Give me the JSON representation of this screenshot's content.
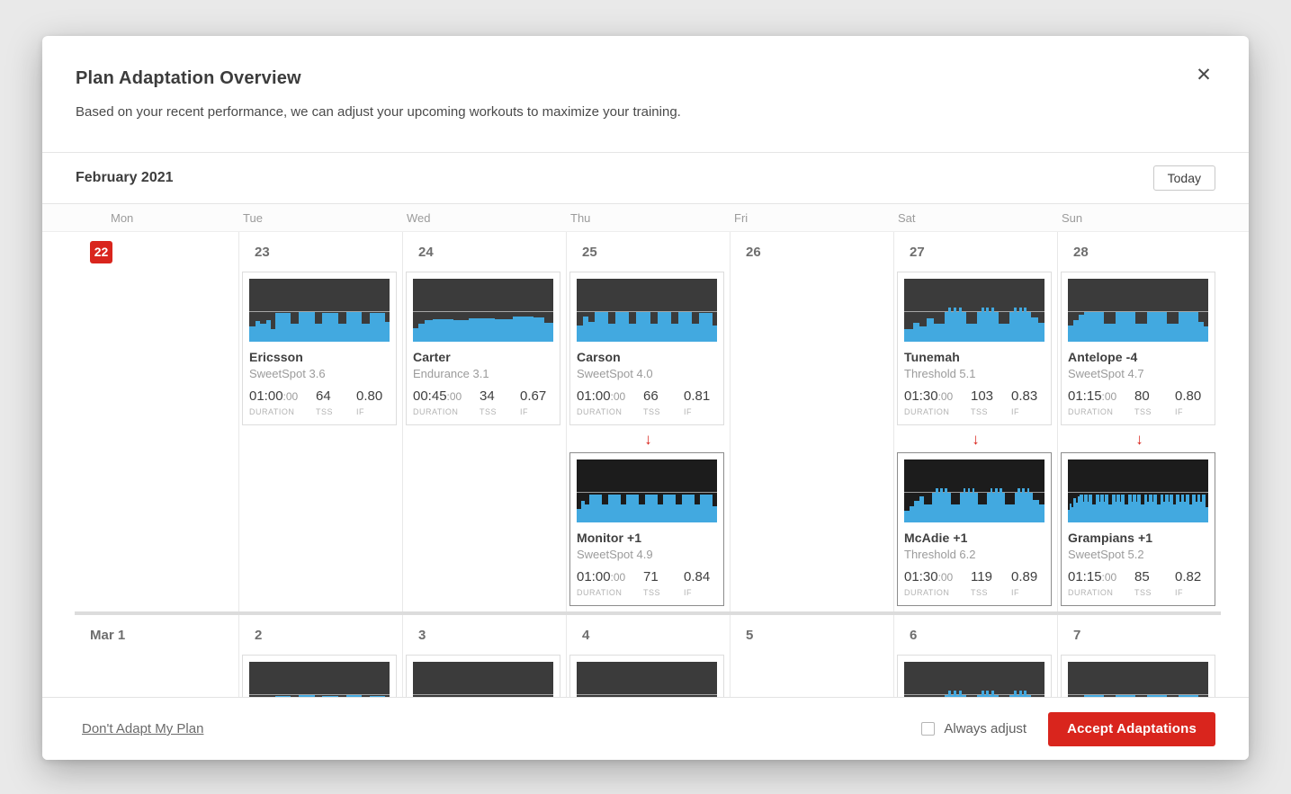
{
  "modal": {
    "title": "Plan Adaptation Overview",
    "subtitle": "Based on your recent performance, we can adjust your upcoming workouts to maximize your training.",
    "close_icon": "✕"
  },
  "calendar": {
    "month_label": "February 2021",
    "today_button": "Today",
    "day_headers": [
      "Mon",
      "Tue",
      "Wed",
      "Thu",
      "Fri",
      "Sat",
      "Sun"
    ],
    "stats_labels": {
      "duration": "DURATION",
      "tss": "TSS",
      "if": "IF"
    },
    "adaptation_arrow": "↓",
    "weeks": [
      {
        "days": [
          {
            "date": "22",
            "today": true,
            "workouts": []
          },
          {
            "date": "23",
            "workouts": [
              {
                "name": "Ericsson",
                "subtitle": "SweetSpot 3.6",
                "duration": "01:00",
                "duration_sec": ":00",
                "tss": "64",
                "if": "0.80",
                "profile": "ss5",
                "adapted": false
              }
            ]
          },
          {
            "date": "24",
            "workouts": [
              {
                "name": "Carter",
                "subtitle": "Endurance 3.1",
                "duration": "00:45",
                "duration_sec": ":00",
                "tss": "34",
                "if": "0.67",
                "profile": "endurance",
                "adapted": false
              }
            ]
          },
          {
            "date": "25",
            "workouts": [
              {
                "name": "Carson",
                "subtitle": "SweetSpot 4.0",
                "duration": "01:00",
                "duration_sec": ":00",
                "tss": "66",
                "if": "0.81",
                "profile": "ss6",
                "adapted": false
              },
              {
                "name": "Monitor +1",
                "subtitle": "SweetSpot 4.9",
                "duration": "01:00",
                "duration_sec": ":00",
                "tss": "71",
                "if": "0.84",
                "profile": "ss7",
                "adapted": true
              }
            ]
          },
          {
            "date": "26",
            "workouts": []
          },
          {
            "date": "27",
            "workouts": [
              {
                "name": "Tunemah",
                "subtitle": "Threshold 5.1",
                "duration": "01:30",
                "duration_sec": ":00",
                "tss": "103",
                "if": "0.83",
                "profile": "thr3",
                "adapted": false
              },
              {
                "name": "McAdie +1",
                "subtitle": "Threshold 6.2",
                "duration": "01:30",
                "duration_sec": ":00",
                "tss": "119",
                "if": "0.89",
                "profile": "thr4",
                "adapted": true
              }
            ]
          },
          {
            "date": "28",
            "workouts": [
              {
                "name": "Antelope -4",
                "subtitle": "SweetSpot 4.7",
                "duration": "01:15",
                "duration_sec": ":00",
                "tss": "80",
                "if": "0.80",
                "profile": "ss4",
                "adapted": false
              },
              {
                "name": "Grampians +1",
                "subtitle": "SweetSpot 5.2",
                "duration": "01:15",
                "duration_sec": ":00",
                "tss": "85",
                "if": "0.82",
                "profile": "ss_dense",
                "adapted": true
              }
            ]
          }
        ]
      },
      {
        "days": [
          {
            "date": "Mar 1",
            "workouts": []
          },
          {
            "date": "2",
            "workouts": [
              {
                "profile": "ss5",
                "adapted": false
              }
            ]
          },
          {
            "date": "3",
            "workouts": [
              {
                "profile": "endurance",
                "adapted": false
              }
            ]
          },
          {
            "date": "4",
            "workouts": [
              {
                "profile": "ss7",
                "adapted": false
              }
            ]
          },
          {
            "date": "5",
            "workouts": []
          },
          {
            "date": "6",
            "workouts": [
              {
                "profile": "thr3",
                "adapted": false
              }
            ]
          },
          {
            "date": "7",
            "workouts": [
              {
                "profile": "ss4",
                "adapted": false
              }
            ]
          }
        ]
      }
    ]
  },
  "footer": {
    "decline_link": "Don't Adapt My Plan",
    "always_adjust_label": "Always adjust",
    "checkbox_checked": false,
    "accept_button": "Accept Adaptations"
  },
  "colors": {
    "accent_red": "#d9251d",
    "chart_blue": "#42a9e0",
    "chart_bg": "#3b3b3b",
    "chart_bg_adapted": "#1c1c1c"
  },
  "profiles": {
    "ss5": [
      [
        2.5,
        0.24
      ],
      [
        2,
        0.33
      ],
      [
        2.5,
        0.29
      ],
      [
        2,
        0.34
      ],
      [
        1.5,
        0.2
      ],
      [
        6.5,
        0.46
      ],
      [
        3.2,
        0.29
      ],
      [
        6.5,
        0.47
      ],
      [
        3.2,
        0.29
      ],
      [
        6.5,
        0.46
      ],
      [
        3.2,
        0.29
      ],
      [
        6.5,
        0.47
      ],
      [
        3,
        0.29
      ],
      [
        6.5,
        0.46
      ],
      [
        1.8,
        0.31
      ]
    ],
    "endurance": [
      [
        2,
        0.21
      ],
      [
        2.5,
        0.29
      ],
      [
        3,
        0.34
      ],
      [
        8,
        0.36
      ],
      [
        6,
        0.35
      ],
      [
        10,
        0.37
      ],
      [
        7,
        0.36
      ],
      [
        8,
        0.4
      ],
      [
        4,
        0.38
      ],
      [
        3.5,
        0.3
      ]
    ],
    "ss6": [
      [
        2,
        0.26
      ],
      [
        2,
        0.4
      ],
      [
        2,
        0.31
      ],
      [
        4.6,
        0.47
      ],
      [
        2.4,
        0.29
      ],
      [
        4.6,
        0.47
      ],
      [
        2.4,
        0.29
      ],
      [
        4.6,
        0.47
      ],
      [
        2.4,
        0.29
      ],
      [
        4.6,
        0.47
      ],
      [
        2.4,
        0.29
      ],
      [
        4.6,
        0.47
      ],
      [
        2.4,
        0.29
      ],
      [
        4.6,
        0.46
      ],
      [
        1.4,
        0.26
      ]
    ],
    "ss7": [
      [
        1.4,
        0.22
      ],
      [
        1.4,
        0.35
      ],
      [
        1.4,
        0.28
      ],
      [
        4.2,
        0.45
      ],
      [
        1.9,
        0.28
      ],
      [
        4.2,
        0.45
      ],
      [
        1.9,
        0.28
      ],
      [
        4.2,
        0.45
      ],
      [
        1.9,
        0.28
      ],
      [
        4.2,
        0.45
      ],
      [
        1.9,
        0.28
      ],
      [
        4.2,
        0.45
      ],
      [
        1.9,
        0.28
      ],
      [
        4.2,
        0.45
      ],
      [
        1.9,
        0.28
      ],
      [
        4.2,
        0.44
      ],
      [
        1.4,
        0.26
      ]
    ],
    "ss4": [
      [
        1.5,
        0.26
      ],
      [
        1.5,
        0.35
      ],
      [
        1.5,
        0.43
      ],
      [
        5.5,
        0.47
      ],
      [
        3.2,
        0.28
      ],
      [
        5.5,
        0.47
      ],
      [
        3.2,
        0.28
      ],
      [
        5.5,
        0.47
      ],
      [
        3.2,
        0.28
      ],
      [
        5.5,
        0.47
      ],
      [
        1.5,
        0.31
      ],
      [
        1.3,
        0.24
      ]
    ],
    "thr3": [
      [
        2.5,
        0.2
      ],
      [
        1.5,
        0.3
      ],
      [
        2,
        0.25
      ],
      [
        2,
        0.37
      ],
      [
        2.8,
        0.29
      ],
      [
        1.1,
        0.47
      ],
      [
        0.7,
        0.54
      ],
      [
        0.7,
        0.47
      ],
      [
        0.7,
        0.54
      ],
      [
        0.7,
        0.47
      ],
      [
        0.7,
        0.54
      ],
      [
        1.1,
        0.47
      ],
      [
        3,
        0.29
      ],
      [
        1.1,
        0.47
      ],
      [
        0.7,
        0.54
      ],
      [
        0.7,
        0.47
      ],
      [
        0.7,
        0.54
      ],
      [
        0.7,
        0.47
      ],
      [
        0.7,
        0.54
      ],
      [
        1.1,
        0.47
      ],
      [
        3,
        0.29
      ],
      [
        1.1,
        0.47
      ],
      [
        0.7,
        0.54
      ],
      [
        0.7,
        0.47
      ],
      [
        0.7,
        0.54
      ],
      [
        0.7,
        0.47
      ],
      [
        0.7,
        0.54
      ],
      [
        1.1,
        0.47
      ],
      [
        2,
        0.38
      ],
      [
        1.6,
        0.3
      ]
    ],
    "thr4": [
      [
        1.3,
        0.18
      ],
      [
        1.3,
        0.26
      ],
      [
        1.3,
        0.34
      ],
      [
        1.3,
        0.42
      ],
      [
        2.2,
        0.28
      ],
      [
        0.9,
        0.47
      ],
      [
        0.6,
        0.54
      ],
      [
        0.6,
        0.47
      ],
      [
        0.6,
        0.54
      ],
      [
        0.6,
        0.47
      ],
      [
        0.6,
        0.54
      ],
      [
        0.9,
        0.47
      ],
      [
        2.4,
        0.28
      ],
      [
        0.9,
        0.47
      ],
      [
        0.6,
        0.54
      ],
      [
        0.6,
        0.47
      ],
      [
        0.6,
        0.54
      ],
      [
        0.6,
        0.47
      ],
      [
        0.6,
        0.54
      ],
      [
        0.9,
        0.47
      ],
      [
        2.4,
        0.28
      ],
      [
        0.9,
        0.47
      ],
      [
        0.6,
        0.54
      ],
      [
        0.6,
        0.47
      ],
      [
        0.6,
        0.54
      ],
      [
        0.6,
        0.47
      ],
      [
        0.6,
        0.54
      ],
      [
        0.9,
        0.47
      ],
      [
        2.4,
        0.28
      ],
      [
        0.9,
        0.47
      ],
      [
        0.6,
        0.54
      ],
      [
        0.6,
        0.47
      ],
      [
        0.6,
        0.54
      ],
      [
        0.6,
        0.47
      ],
      [
        0.6,
        0.54
      ],
      [
        0.9,
        0.47
      ],
      [
        1.7,
        0.36
      ],
      [
        1.4,
        0.29
      ]
    ],
    "ss_dense": [
      [
        0.5,
        0.2
      ],
      [
        0.5,
        0.3
      ],
      [
        0.5,
        0.25
      ],
      [
        0.5,
        0.38
      ],
      [
        0.5,
        0.32
      ],
      [
        0.5,
        0.42
      ],
      [
        0.9,
        0.45
      ],
      [
        0.3,
        0.33
      ],
      [
        0.9,
        0.45
      ],
      [
        0.3,
        0.33
      ],
      [
        0.9,
        0.45
      ],
      [
        0.9,
        0.29
      ],
      [
        0.9,
        0.45
      ],
      [
        0.3,
        0.33
      ],
      [
        0.9,
        0.45
      ],
      [
        0.3,
        0.33
      ],
      [
        0.9,
        0.45
      ],
      [
        0.9,
        0.29
      ],
      [
        0.9,
        0.45
      ],
      [
        0.3,
        0.33
      ],
      [
        0.9,
        0.45
      ],
      [
        0.3,
        0.33
      ],
      [
        0.9,
        0.45
      ],
      [
        0.9,
        0.29
      ],
      [
        0.9,
        0.45
      ],
      [
        0.3,
        0.33
      ],
      [
        0.9,
        0.45
      ],
      [
        0.3,
        0.33
      ],
      [
        0.9,
        0.45
      ],
      [
        0.9,
        0.29
      ],
      [
        0.9,
        0.45
      ],
      [
        0.3,
        0.33
      ],
      [
        0.9,
        0.45
      ],
      [
        0.3,
        0.33
      ],
      [
        0.9,
        0.45
      ],
      [
        0.9,
        0.29
      ],
      [
        0.9,
        0.45
      ],
      [
        0.3,
        0.33
      ],
      [
        0.9,
        0.45
      ],
      [
        0.3,
        0.33
      ],
      [
        0.9,
        0.45
      ],
      [
        0.9,
        0.29
      ],
      [
        0.9,
        0.45
      ],
      [
        0.3,
        0.33
      ],
      [
        0.9,
        0.45
      ],
      [
        0.3,
        0.33
      ],
      [
        0.9,
        0.45
      ],
      [
        0.9,
        0.29
      ],
      [
        0.9,
        0.45
      ],
      [
        0.3,
        0.33
      ],
      [
        0.9,
        0.45
      ],
      [
        0.3,
        0.33
      ],
      [
        0.9,
        0.45
      ],
      [
        0.8,
        0.24
      ]
    ]
  }
}
